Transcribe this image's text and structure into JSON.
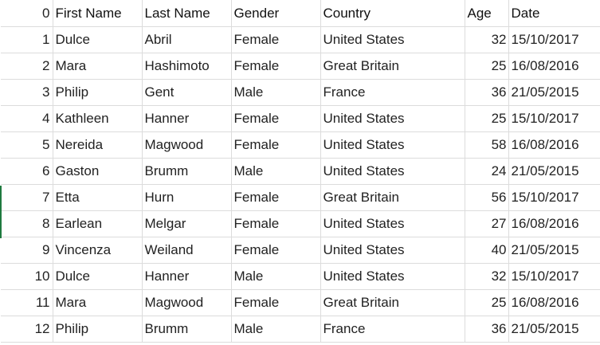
{
  "columns": [
    "0",
    "First Name",
    "Last Name",
    "Gender",
    "Country",
    "Age",
    "Date"
  ],
  "rows": [
    [
      "1",
      "Dulce",
      "Abril",
      "Female",
      "United States",
      "32",
      "15/10/2017"
    ],
    [
      "2",
      "Mara",
      "Hashimoto",
      "Female",
      "Great Britain",
      "25",
      "16/08/2016"
    ],
    [
      "3",
      "Philip",
      "Gent",
      "Male",
      "France",
      "36",
      "21/05/2015"
    ],
    [
      "4",
      "Kathleen",
      "Hanner",
      "Female",
      "United States",
      "25",
      "15/10/2017"
    ],
    [
      "5",
      "Nereida",
      "Magwood",
      "Female",
      "United States",
      "58",
      "16/08/2016"
    ],
    [
      "6",
      "Gaston",
      "Brumm",
      "Male",
      "United States",
      "24",
      "21/05/2015"
    ],
    [
      "7",
      "Etta",
      "Hurn",
      "Female",
      "Great Britain",
      "56",
      "15/10/2017"
    ],
    [
      "8",
      "Earlean",
      "Melgar",
      "Female",
      "United States",
      "27",
      "16/08/2016"
    ],
    [
      "9",
      "Vincenza",
      "Weiland",
      "Female",
      "United States",
      "40",
      "21/05/2015"
    ],
    [
      "10",
      "Dulce",
      "Hanner",
      "Male",
      "United States",
      "32",
      "15/10/2017"
    ],
    [
      "11",
      "Mara",
      "Magwood",
      "Female",
      "Great Britain",
      "25",
      "16/08/2016"
    ],
    [
      "12",
      "Philip",
      "Brumm",
      "Male",
      "France",
      "36",
      "21/05/2015"
    ]
  ],
  "colors": {
    "gridline": "#dcdcdc",
    "text": "#222222",
    "selection_marker": "#1f7a3f"
  }
}
